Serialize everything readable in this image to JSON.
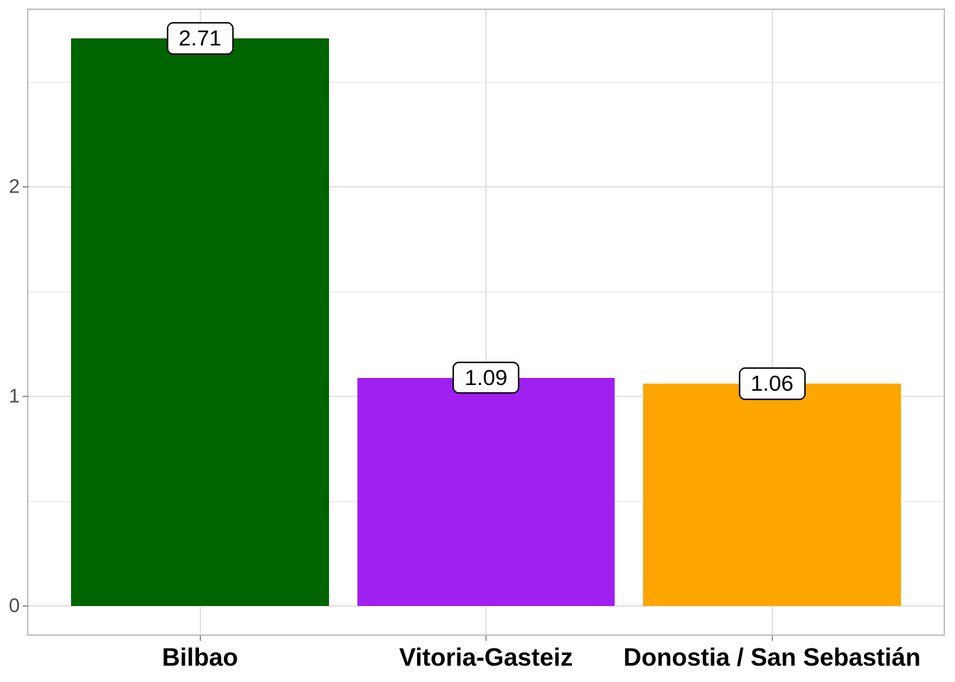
{
  "chart_data": {
    "type": "bar",
    "title": "",
    "xlabel": "",
    "ylabel": "",
    "categories": [
      "Bilbao",
      "Vitoria-Gasteiz",
      "Donostia / San Sebastián"
    ],
    "values": [
      2.71,
      1.09,
      1.06
    ],
    "value_labels": [
      "2.71",
      "1.09",
      "1.06"
    ],
    "bar_colors": [
      "#006400",
      "#A020F0",
      "#FFA500"
    ],
    "bar_width_fraction": 0.9,
    "ylim": [
      -0.136,
      2.846
    ],
    "yticks": {
      "major": [
        0,
        1,
        2
      ],
      "labels": [
        "0",
        "1",
        "2"
      ],
      "minor": [
        0.5,
        1.5,
        2.5
      ]
    },
    "grid": "major-and-minor-horizontal, major-vertical-at-category-centers",
    "legend": false,
    "style": {
      "background_color": "#ffffff",
      "panel_border_color": "#c0c0c0",
      "grid_major_color": "#e2e2e2",
      "grid_minor_color": "#f0f0f0",
      "tick_color": "#999999",
      "y_label_color": "#4d4d4d",
      "x_label_color": "#000000",
      "value_label_text_color": "#000000",
      "value_label_box_fill": "#ffffff",
      "value_label_box_border": "#000000"
    }
  }
}
